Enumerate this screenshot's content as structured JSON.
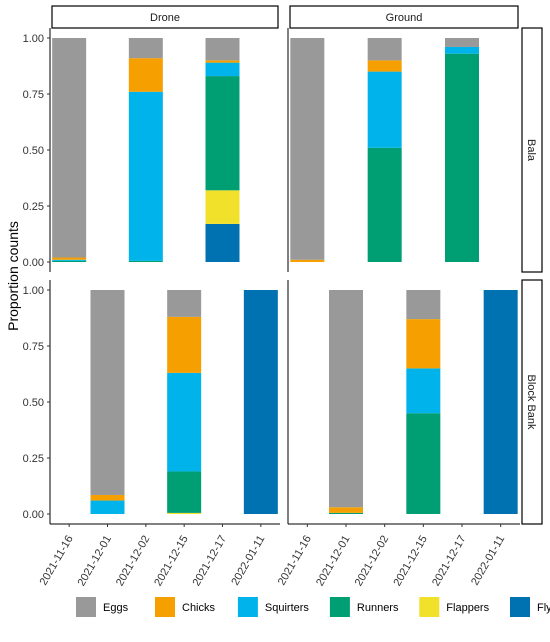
{
  "chart_data": {
    "type": "bar",
    "stacked": true,
    "facet_columns": [
      "Drone",
      "Ground"
    ],
    "facet_rows": [
      "Bala",
      "Block Bank"
    ],
    "ylabel": "Proportion counts",
    "xlabel": "",
    "ylim": [
      0,
      1
    ],
    "y_ticks": [
      "0.00",
      "0.25",
      "0.50",
      "0.75",
      "1.00"
    ],
    "categories": [
      "2021-11-16",
      "2021-12-01",
      "2021-12-02",
      "2021-12-15",
      "2021-12-17",
      "2022-01-11"
    ],
    "legend_position": "bottom",
    "grid": false,
    "stack_order": [
      "Flyers",
      "Flappers",
      "Runners",
      "Squirters",
      "Chicks",
      "Eggs"
    ],
    "series_colors": {
      "Eggs": "#999999",
      "Chicks": "#F5A000",
      "Squirters": "#00B4EB",
      "Runners": "#009E73",
      "Flappers": "#F2E12A",
      "Flyers": "#0072B2"
    },
    "legend": [
      "Eggs",
      "Chicks",
      "Squirters",
      "Runners",
      "Flappers",
      "Flyers"
    ],
    "panels": [
      {
        "column": "Drone",
        "row": "Bala",
        "bars": [
          {
            "category": "2021-11-16",
            "Flyers": 0.0,
            "Flappers": 0.0,
            "Runners": 0.005,
            "Squirters": 0.005,
            "Chicks": 0.01,
            "Eggs": 0.98
          },
          {
            "category": "2021-12-02",
            "Flyers": 0.0,
            "Flappers": 0.0,
            "Runners": 0.005,
            "Squirters": 0.755,
            "Chicks": 0.15,
            "Eggs": 0.09
          },
          {
            "category": "2021-12-17",
            "Flyers": 0.17,
            "Flappers": 0.15,
            "Runners": 0.51,
            "Squirters": 0.06,
            "Chicks": 0.01,
            "Eggs": 0.1
          }
        ]
      },
      {
        "column": "Ground",
        "row": "Bala",
        "bars": [
          {
            "category": "2021-11-16",
            "Flyers": 0.0,
            "Flappers": 0.0,
            "Runners": 0.0,
            "Squirters": 0.0,
            "Chicks": 0.01,
            "Eggs": 0.99
          },
          {
            "category": "2021-12-02",
            "Flyers": 0.0,
            "Flappers": 0.0,
            "Runners": 0.51,
            "Squirters": 0.34,
            "Chicks": 0.05,
            "Eggs": 0.1
          },
          {
            "category": "2021-12-17",
            "Flyers": 0.0,
            "Flappers": 0.0,
            "Runners": 0.93,
            "Squirters": 0.03,
            "Chicks": 0.0,
            "Eggs": 0.04
          }
        ]
      },
      {
        "column": "Drone",
        "row": "Block Bank",
        "bars": [
          {
            "category": "2021-12-01",
            "Flyers": 0.0,
            "Flappers": 0.0,
            "Runners": 0.0,
            "Squirters": 0.06,
            "Chicks": 0.025,
            "Eggs": 0.915
          },
          {
            "category": "2021-12-15",
            "Flyers": 0.0,
            "Flappers": 0.005,
            "Runners": 0.185,
            "Squirters": 0.44,
            "Chicks": 0.25,
            "Eggs": 0.12
          },
          {
            "category": "2022-01-11",
            "Flyers": 1.0,
            "Flappers": 0.0,
            "Runners": 0.0,
            "Squirters": 0.0,
            "Chicks": 0.0,
            "Eggs": 0.0
          }
        ]
      },
      {
        "column": "Ground",
        "row": "Block Bank",
        "bars": [
          {
            "category": "2021-12-01",
            "Flyers": 0.0,
            "Flappers": 0.0,
            "Runners": 0.005,
            "Squirters": 0.0,
            "Chicks": 0.025,
            "Eggs": 0.97
          },
          {
            "category": "2021-12-15",
            "Flyers": 0.0,
            "Flappers": 0.0,
            "Runners": 0.45,
            "Squirters": 0.2,
            "Chicks": 0.22,
            "Eggs": 0.13
          },
          {
            "category": "2022-01-11",
            "Flyers": 1.0,
            "Flappers": 0.0,
            "Runners": 0.0,
            "Squirters": 0.0,
            "Chicks": 0.0,
            "Eggs": 0.0
          }
        ]
      }
    ]
  }
}
